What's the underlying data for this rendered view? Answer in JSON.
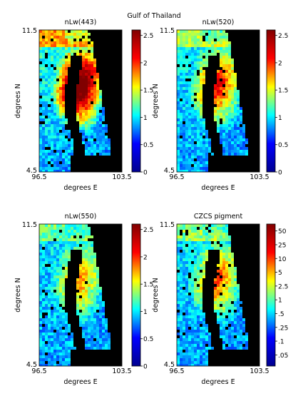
{
  "figure": {
    "title": "Gulf of Thailand"
  },
  "chart_data": [
    {
      "type": "heatmap",
      "title": "nLw(443)",
      "xlabel": "degrees E",
      "ylabel": "degrees N",
      "xlim": [
        96.5,
        103.5
      ],
      "ylim": [
        4.5,
        11.5
      ],
      "x_ticks": [
        "96.5",
        "103.5"
      ],
      "y_ticks": [
        "11.5",
        "4.5"
      ],
      "colorbar": {
        "ticks": [
          "2.5",
          "2",
          "1.5",
          "1",
          "0.5",
          "0"
        ],
        "range": [
          0,
          2.6
        ]
      },
      "colormap": [
        "#00008f",
        "#0000ff",
        "#00ffff",
        "#ffff00",
        "#ff0000",
        "#800000"
      ],
      "land_color": "#000000",
      "intensity": 1.6
    },
    {
      "type": "heatmap",
      "title": "nLw(520)",
      "xlabel": "degrees E",
      "ylabel": "degrees N",
      "xlim": [
        96.5,
        103.5
      ],
      "ylim": [
        4.5,
        11.5
      ],
      "x_ticks": [
        "96.5",
        "103.5"
      ],
      "y_ticks": [
        "11.5",
        "4.5"
      ],
      "colorbar": {
        "ticks": [
          "2.5",
          "2",
          "1.5",
          "1",
          "0.5",
          "0"
        ],
        "range": [
          0,
          2.6
        ]
      },
      "colormap": [
        "#00008f",
        "#0000ff",
        "#00ffff",
        "#ffff00",
        "#ff0000",
        "#800000"
      ],
      "land_color": "#000000",
      "intensity": 1.0
    },
    {
      "type": "heatmap",
      "title": "nLw(550)",
      "xlabel": "degrees E",
      "ylabel": "degrees N",
      "xlim": [
        96.5,
        103.5
      ],
      "ylim": [
        4.5,
        11.5
      ],
      "x_ticks": [
        "96.5",
        "103.5"
      ],
      "y_ticks": [
        "11.5",
        "4.5"
      ],
      "colorbar": {
        "ticks": [
          "2.5",
          "2",
          "1.5",
          "1",
          "0.5",
          "0"
        ],
        "range": [
          0,
          2.6
        ]
      },
      "colormap": [
        "#00008f",
        "#0000ff",
        "#00ffff",
        "#ffff00",
        "#ff0000",
        "#800000"
      ],
      "land_color": "#000000",
      "intensity": 0.75
    },
    {
      "type": "heatmap",
      "title": "CZCS pigment",
      "xlabel": "degrees E",
      "ylabel": "degrees N",
      "xlim": [
        96.5,
        103.5
      ],
      "ylim": [
        4.5,
        11.5
      ],
      "x_ticks": [
        "96.5",
        "103.5"
      ],
      "y_ticks": [
        "11.5",
        "4.5"
      ],
      "colorbar": {
        "ticks": [
          "50",
          "25",
          "10",
          "5",
          "2.5",
          "1",
          ".5",
          ".25",
          ".1",
          ".05"
        ],
        "scale": "log"
      },
      "colormap": [
        "#00008f",
        "#0000ff",
        "#00ffff",
        "#ffff00",
        "#ff0000",
        "#800000"
      ],
      "land_color": "#000000",
      "intensity": 0.85
    }
  ]
}
